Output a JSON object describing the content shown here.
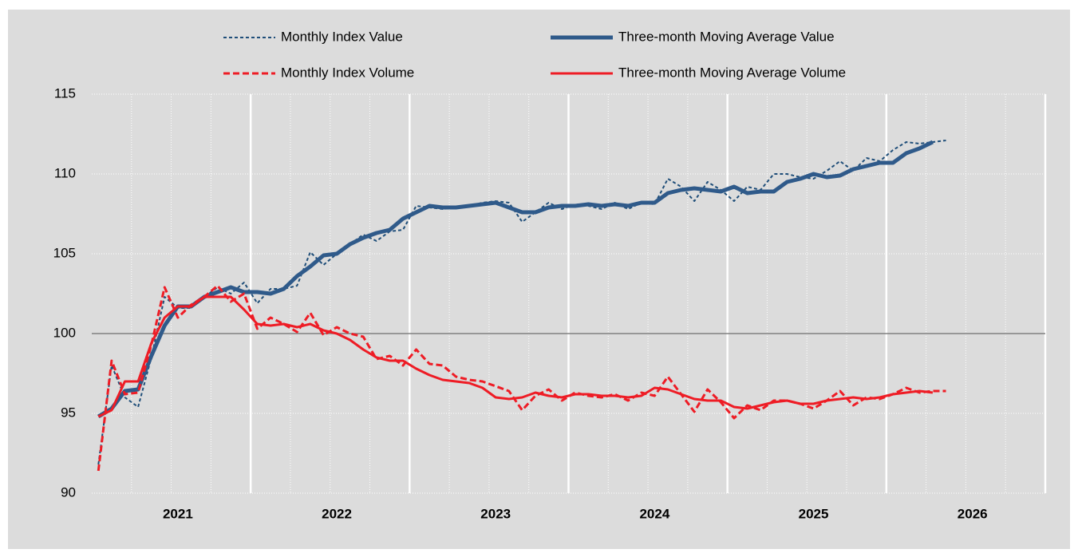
{
  "chart_data": {
    "type": "line",
    "categories": [
      null,
      null,
      null,
      null,
      null,
      null,
      "2021",
      null,
      null,
      null,
      null,
      null,
      null,
      null,
      null,
      null,
      null,
      null,
      "2022",
      null,
      null,
      null,
      null,
      null,
      null,
      null,
      null,
      null,
      null,
      null,
      "2023",
      null,
      null,
      null,
      null,
      null,
      null,
      null,
      null,
      null,
      null,
      null,
      "2024",
      null,
      null,
      null,
      null,
      null,
      null,
      null,
      null,
      null,
      null,
      null,
      "2025",
      null,
      null,
      null,
      null,
      null,
      null,
      null,
      null,
      null,
      null,
      null,
      "2026",
      null,
      null,
      null,
      null,
      null
    ],
    "ylim": [
      90,
      115
    ],
    "yticks": [
      90,
      95,
      100,
      105,
      110,
      115
    ],
    "baseline": 100,
    "grid": true,
    "legend": "top",
    "series": [
      {
        "name": "Monthly Index Value",
        "color": "#1f4e79",
        "line_style": "dashed",
        "line_width": 2,
        "values": [
          91.8,
          98.0,
          96.0,
          95.4,
          98.5,
          102.3,
          101.6,
          101.6,
          102.3,
          102.9,
          102.5,
          103.2,
          101.9,
          102.8,
          102.8,
          103.0,
          105.1,
          104.3,
          105.0,
          105.6,
          106.2,
          105.8,
          106.4,
          106.5,
          108.0,
          107.9,
          107.8,
          107.9,
          108.0,
          108.2,
          108.3,
          108.2,
          107.0,
          107.6,
          108.2,
          107.8,
          108.1,
          108.0,
          107.8,
          108.2,
          107.8,
          108.2,
          108.1,
          109.7,
          109.2,
          108.3,
          109.5,
          109.0,
          108.3,
          109.2,
          109.0,
          110.0,
          110.0,
          109.8,
          109.7,
          110.2,
          110.8,
          110.2,
          111.0,
          110.8,
          111.5,
          112.0,
          111.9,
          112.0,
          112.1,
          null,
          null,
          null,
          null,
          null,
          null,
          null
        ]
      },
      {
        "name": "Three-month Moving Average Value",
        "color": "#2f5a8a",
        "line_style": "solid",
        "line_width": 5,
        "values": [
          94.8,
          95.3,
          96.4,
          96.5,
          98.6,
          100.5,
          101.7,
          101.7,
          102.3,
          102.6,
          102.9,
          102.6,
          102.6,
          102.5,
          102.8,
          103.6,
          104.2,
          104.9,
          105.0,
          105.6,
          106.0,
          106.3,
          106.5,
          107.2,
          107.6,
          108.0,
          107.9,
          107.9,
          108.0,
          108.1,
          108.2,
          107.9,
          107.6,
          107.6,
          107.9,
          108.0,
          108.0,
          108.1,
          108.0,
          108.1,
          108.0,
          108.2,
          108.2,
          108.8,
          109.0,
          109.1,
          109.0,
          108.9,
          109.2,
          108.8,
          108.9,
          108.9,
          109.5,
          109.7,
          110.0,
          109.8,
          109.9,
          110.3,
          110.5,
          110.7,
          110.7,
          111.3,
          111.6,
          112.0,
          null,
          null,
          null,
          null,
          null,
          null,
          null,
          null
        ]
      },
      {
        "name": "Monthly Index Volume",
        "color": "#ee1c25",
        "line_style": "dashed",
        "line_width": 3,
        "values": [
          91.4,
          98.3,
          96.2,
          96.3,
          99.3,
          102.9,
          101.0,
          101.8,
          102.3,
          103.0,
          102.0,
          102.5,
          100.3,
          101.0,
          100.6,
          100.1,
          101.3,
          99.9,
          100.4,
          100.0,
          99.8,
          98.4,
          98.6,
          98.0,
          99.0,
          98.1,
          98.0,
          97.3,
          97.1,
          97.0,
          96.7,
          96.4,
          95.2,
          96.1,
          96.5,
          95.8,
          96.3,
          96.1,
          96.0,
          96.2,
          95.8,
          96.3,
          96.1,
          97.3,
          96.2,
          95.1,
          96.5,
          95.7,
          94.7,
          95.5,
          95.2,
          95.8,
          95.8,
          95.6,
          95.3,
          95.8,
          96.4,
          95.5,
          96.0,
          95.9,
          96.2,
          96.6,
          96.3,
          96.4,
          96.4,
          null,
          null,
          null,
          null,
          null,
          null,
          null
        ]
      },
      {
        "name": "Three-month Moving Average Volume",
        "color": "#ee1c25",
        "line_style": "solid",
        "line_width": 3,
        "values": [
          94.8,
          95.2,
          97.0,
          97.0,
          99.4,
          101.0,
          101.7,
          101.7,
          102.3,
          102.3,
          102.3,
          101.5,
          100.6,
          100.5,
          100.6,
          100.4,
          100.6,
          100.2,
          100.0,
          99.6,
          99.0,
          98.5,
          98.3,
          98.3,
          97.8,
          97.4,
          97.1,
          97.0,
          96.9,
          96.6,
          96.0,
          95.9,
          96.0,
          96.3,
          96.1,
          96.0,
          96.2,
          96.2,
          96.1,
          96.1,
          96.0,
          96.1,
          96.6,
          96.5,
          96.2,
          95.9,
          95.8,
          95.8,
          95.4,
          95.3,
          95.5,
          95.7,
          95.8,
          95.6,
          95.6,
          95.8,
          95.9,
          96.0,
          95.9,
          96.0,
          96.2,
          96.3,
          96.4,
          96.3,
          null,
          null,
          null,
          null,
          null,
          null,
          null,
          null
        ]
      }
    ]
  }
}
